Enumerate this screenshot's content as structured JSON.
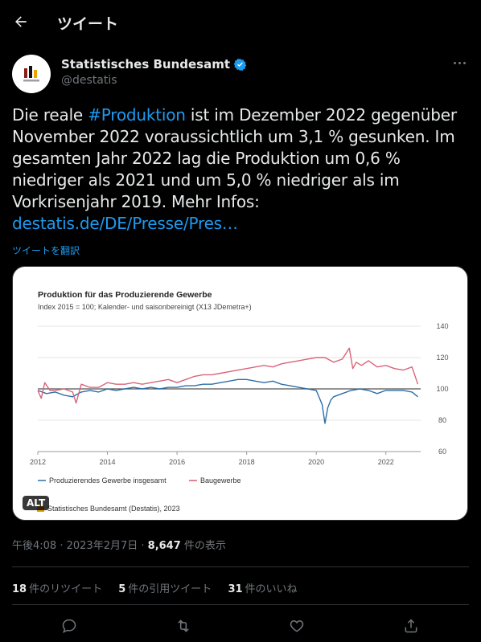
{
  "header": {
    "title": "ツイート"
  },
  "author": {
    "name": "Statistisches Bundesamt",
    "handle": "@destatis"
  },
  "tweet": {
    "text_1": "Die reale ",
    "hashtag": "#Produktion",
    "text_2": " ist im Dezember 2022 gegenüber November 2022 voraussichtlich um 3,1 % gesunken. Im gesamten Jahr 2022 lag die Produktion um 0,6 % niedriger als 2021 und um 5,0 % niedriger als im Vorkrisenjahr 2019. Mehr Infos: ",
    "url": "destatis.de/DE/Presse/Pres…",
    "translate": "ツイートを翻訳"
  },
  "media": {
    "alt_label": "ALT"
  },
  "chart_data": {
    "type": "line",
    "title": "Produktion für das Produzierende Gewerbe",
    "subtitle": "Index 2015 = 100; Kalender- und saisonbereinigt (X13 JDemetra+)",
    "ylim": [
      60,
      140
    ],
    "yticks": [
      "140",
      "120",
      "100",
      "80",
      "60"
    ],
    "xlim": [
      2012,
      2023
    ],
    "xticks": [
      "2012",
      "2014",
      "2016",
      "2018",
      "2020",
      "2022"
    ],
    "reference_line": 100,
    "source": "Statistisches Bundesamt (Destatis), 2023",
    "series": [
      {
        "name": "Produzierendes Gewerbe insgesamt",
        "color": "#2e6ea6",
        "x": [
          2012.0,
          2012.25,
          2012.5,
          2012.75,
          2013.0,
          2013.25,
          2013.5,
          2013.75,
          2014.0,
          2014.25,
          2014.5,
          2014.75,
          2015.0,
          2015.25,
          2015.5,
          2015.75,
          2016.0,
          2016.25,
          2016.5,
          2016.75,
          2017.0,
          2017.25,
          2017.5,
          2017.75,
          2018.0,
          2018.25,
          2018.5,
          2018.75,
          2019.0,
          2019.25,
          2019.5,
          2019.75,
          2020.0,
          2020.17,
          2020.25,
          2020.33,
          2020.42,
          2020.5,
          2020.75,
          2021.0,
          2021.25,
          2021.5,
          2021.75,
          2022.0,
          2022.25,
          2022.5,
          2022.75,
          2022.92
        ],
        "values": [
          99,
          97,
          98,
          96,
          95,
          98,
          99,
          98,
          100,
          99,
          100,
          101,
          100,
          101,
          100,
          101,
          101,
          102,
          102,
          103,
          103,
          104,
          105,
          106,
          106,
          105,
          104,
          105,
          103,
          102,
          101,
          100,
          99,
          90,
          78,
          88,
          93,
          95,
          97,
          99,
          100,
          99,
          97,
          99,
          99,
          99,
          98,
          95
        ]
      },
      {
        "name": "Baugewerbe",
        "color": "#d9647a",
        "x": [
          2012.0,
          2012.1,
          2012.2,
          2012.35,
          2012.5,
          2012.75,
          2013.0,
          2013.1,
          2013.25,
          2013.5,
          2013.75,
          2014.0,
          2014.25,
          2014.5,
          2014.75,
          2015.0,
          2015.25,
          2015.5,
          2015.75,
          2016.0,
          2016.25,
          2016.5,
          2016.75,
          2017.0,
          2017.25,
          2017.5,
          2017.75,
          2018.0,
          2018.25,
          2018.5,
          2018.75,
          2019.0,
          2019.25,
          2019.5,
          2019.75,
          2020.0,
          2020.25,
          2020.5,
          2020.75,
          2020.95,
          2021.05,
          2021.15,
          2021.3,
          2021.5,
          2021.75,
          2022.0,
          2022.25,
          2022.5,
          2022.75,
          2022.92
        ],
        "values": [
          99,
          94,
          104,
          99,
          99,
          100,
          98,
          91,
          103,
          101,
          101,
          104,
          103,
          103,
          104,
          103,
          104,
          105,
          106,
          104,
          106,
          108,
          109,
          109,
          110,
          111,
          112,
          113,
          114,
          115,
          114,
          116,
          117,
          118,
          119,
          120,
          120,
          117,
          119,
          126,
          113,
          117,
          115,
          118,
          114,
          115,
          113,
          112,
          114,
          103
        ]
      }
    ]
  },
  "meta": {
    "time": "午後4:08",
    "date": "2023年2月7日",
    "views_count": "8,647",
    "views_label": "件の表示"
  },
  "stats": {
    "retweets_count": "18",
    "retweets_label": "件のリツイート",
    "quotes_count": "5",
    "quotes_label": "件の引用ツイート",
    "likes_count": "31",
    "likes_label": "件のいいね"
  },
  "icons": [
    "back-arrow-icon",
    "verified-icon",
    "more-icon",
    "reply-icon",
    "retweet-icon",
    "like-icon",
    "share-icon"
  ]
}
